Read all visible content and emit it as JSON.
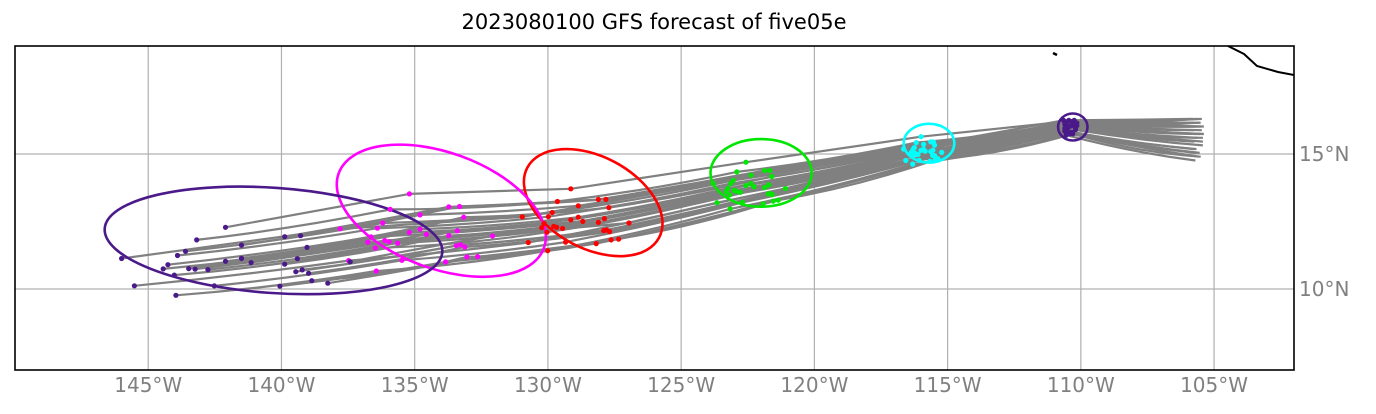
{
  "title": "2023080100 GFS forecast of five05e",
  "map": {
    "lon_range": [
      -150,
      -102
    ],
    "lat_range": [
      7,
      19
    ],
    "lon_ticks": [
      {
        "value": -145,
        "label": "145°W"
      },
      {
        "value": -140,
        "label": "140°W"
      },
      {
        "value": -135,
        "label": "135°W"
      },
      {
        "value": -130,
        "label": "130°W"
      },
      {
        "value": -125,
        "label": "125°W"
      },
      {
        "value": -120,
        "label": "120°W"
      },
      {
        "value": -115,
        "label": "115°W"
      },
      {
        "value": -110,
        "label": "110°W"
      },
      {
        "value": -105,
        "label": "105°W"
      }
    ],
    "lat_ticks": [
      {
        "value": 15,
        "label": "15°N"
      },
      {
        "value": 10,
        "label": "10°N"
      }
    ],
    "grid": true,
    "colors": {
      "track": "#808080",
      "grid": "#b0b0b0",
      "coast": "#000000",
      "init": "#4b1a8a",
      "day1": "#00ffff",
      "day2": "#00e600",
      "day3": "#ff0000",
      "day4": "#ff00ff",
      "day5": "#4b1a8a"
    }
  },
  "chart_data": {
    "type": "map-track",
    "center_start": [
      -110.3,
      16.0
    ],
    "tracks": [
      {
        "shape": [
          -0.6,
          0.4,
          0.0,
          0.2,
          -0.9,
          0.0
        ]
      },
      {
        "shape": [
          -0.3,
          0.0,
          -0.6,
          -1.0,
          -0.2,
          -1.1
        ]
      },
      {
        "shape": [
          0.0,
          -0.5,
          0.2,
          -0.7,
          0.6,
          -3.3
        ]
      },
      {
        "shape": [
          -0.5,
          -0.6,
          -0.3,
          -0.8,
          -0.3,
          -2.1
        ]
      },
      {
        "shape": [
          -0.1,
          0.1,
          0.1,
          -0.5,
          -0.6,
          -1.7
        ]
      },
      {
        "shape": [
          -0.6,
          -0.3,
          -0.3,
          -0.3,
          -0.3,
          -1.4
        ]
      },
      {
        "shape": [
          0.2,
          -0.1,
          0.2,
          -0.8,
          -0.6,
          -0.8
        ]
      },
      {
        "shape": [
          -0.1,
          0.4,
          -0.4,
          -0.8,
          -0.6,
          -1.1
        ]
      },
      {
        "shape": [
          -0.5,
          -0.4,
          -0.1,
          -0.7,
          -0.4,
          -1.4
        ]
      },
      {
        "shape": [
          0.2,
          0.1,
          -0.2,
          -0.5,
          -0.4,
          -0.7
        ]
      },
      {
        "shape": [
          0.1,
          0.2,
          0.1,
          -0.1,
          0.4,
          -0.8
        ]
      },
      {
        "shape": [
          -0.3,
          0.5,
          0.3,
          -0.4,
          -0.5,
          -1.6
        ]
      },
      {
        "shape": [
          0.0,
          0.3,
          -0.5,
          -0.6,
          0.3,
          -1.5
        ]
      },
      {
        "shape": [
          -0.7,
          0.5,
          -0.5,
          -0.6,
          -0.8,
          -0.2
        ]
      },
      {
        "shape": [
          0.3,
          0.1,
          -0.7,
          -0.7,
          -0.1,
          -1.7
        ]
      },
      {
        "shape": [
          -0.6,
          0.2,
          0.4,
          -0.9,
          0.5,
          -1.4
        ]
      },
      {
        "shape": [
          0.2,
          -0.2,
          0.1,
          -0.6,
          -0.1,
          -1.4
        ]
      },
      {
        "shape": [
          0.0,
          0.4,
          -0.4,
          -0.2,
          -0.3,
          -1.9
        ]
      },
      {
        "shape": [
          -0.1,
          0.1,
          0.1,
          0.0,
          0.1,
          -0.5
        ]
      },
      {
        "shape": [
          -0.4,
          -0.4,
          0.2,
          -0.8,
          0.1,
          -1.1
        ]
      },
      {
        "shape": [
          -0.5,
          0.3,
          -0.2,
          -0.8,
          -0.3,
          -1.1
        ]
      },
      {
        "shape": [
          0.3,
          0.3,
          0.0,
          -0.6,
          -0.1,
          -1.1
        ]
      },
      {
        "shape": [
          -0.1,
          -0.4,
          -0.3,
          -0.4,
          0.0,
          -1.6
        ]
      },
      {
        "shape": [
          -0.4,
          -0.3,
          0.0,
          -0.1,
          -0.6,
          -1.5
        ]
      },
      {
        "shape": [
          0.2,
          0.0,
          -0.6,
          -0.7,
          -0.5,
          -2.5
        ]
      },
      {
        "shape": [
          0.0,
          0.3,
          0.4,
          -0.8,
          0.6,
          0.5
        ]
      },
      {
        "shape": [
          -0.6,
          -0.1,
          0.0,
          -0.3,
          -0.6,
          -1.6
        ]
      },
      {
        "shape": [
          0.1,
          0.5,
          -0.5,
          -0.6,
          0.1,
          -1.5
        ]
      },
      {
        "shape": [
          -0.2,
          -0.5,
          0.2,
          -0.4,
          0.1,
          -0.7
        ]
      },
      {
        "shape": [
          -0.4,
          0.1,
          0.0,
          -0.1,
          -0.4,
          -1.0
        ]
      }
    ],
    "ellipses": [
      {
        "day": "init",
        "center": [
          -110.3,
          16.0
        ],
        "lon_half": 0.55,
        "lat_half": 0.5,
        "angle": 0
      },
      {
        "day": "day1",
        "center": [
          -115.7,
          15.4
        ],
        "lon_half": 0.95,
        "lat_half": 0.72,
        "angle": 0
      },
      {
        "day": "day2",
        "center": [
          -122.0,
          14.3
        ],
        "lon_half": 1.9,
        "lat_half": 1.25,
        "angle": 0
      },
      {
        "day": "day3",
        "center": [
          -128.3,
          13.2
        ],
        "lon_half": 2.8,
        "lat_half": 1.7,
        "angle": 28
      },
      {
        "day": "day4",
        "center": [
          -134.0,
          12.9
        ],
        "lon_half": 4.1,
        "lat_half": 2.15,
        "angle": 20
      },
      {
        "day": "day5",
        "center": [
          -140.3,
          11.8
        ],
        "lon_half": 6.35,
        "lat_half": 1.95,
        "angle": 4
      }
    ]
  }
}
